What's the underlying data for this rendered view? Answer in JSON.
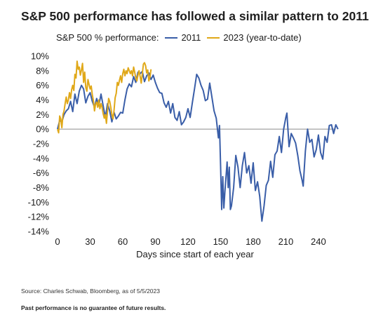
{
  "chart_data": {
    "type": "line",
    "title": "S&P 500 performance has followed a similar pattern to 2011",
    "legend_prefix": "S&P 500 % performance:",
    "xlabel": "Days since start of each year",
    "ylabel": "",
    "xlim": [
      0,
      252
    ],
    "ylim": [
      -14,
      10
    ],
    "xticks": [
      "0",
      "30",
      "60",
      "90",
      "120",
      "150",
      "180",
      "210",
      "240"
    ],
    "yticks": [
      "10%",
      "8%",
      "6%",
      "4%",
      "2%",
      "0%",
      "-2%",
      "-4%",
      "-6%",
      "-8%",
      "-10%",
      "-12%",
      "-14%"
    ],
    "grid": false,
    "legend_position": "top",
    "series": [
      {
        "name": "2011",
        "color": "#3a5ea8",
        "points": [
          [
            0,
            0.0
          ],
          [
            2,
            1.2
          ],
          [
            4,
            1.0
          ],
          [
            6,
            2.0
          ],
          [
            8,
            2.5
          ],
          [
            10,
            2.8
          ],
          [
            12,
            3.8
          ],
          [
            14,
            2.4
          ],
          [
            16,
            4.8
          ],
          [
            18,
            3.5
          ],
          [
            20,
            5.2
          ],
          [
            22,
            6.0
          ],
          [
            24,
            5.5
          ],
          [
            26,
            3.6
          ],
          [
            28,
            4.5
          ],
          [
            30,
            5.0
          ],
          [
            32,
            3.8
          ],
          [
            34,
            3.0
          ],
          [
            36,
            4.2
          ],
          [
            38,
            3.2
          ],
          [
            40,
            4.8
          ],
          [
            42,
            3.2
          ],
          [
            44,
            1.6
          ],
          [
            46,
            3.5
          ],
          [
            48,
            2.5
          ],
          [
            50,
            1.0
          ],
          [
            52,
            2.3
          ],
          [
            54,
            1.4
          ],
          [
            56,
            1.8
          ],
          [
            58,
            2.3
          ],
          [
            60,
            2.2
          ],
          [
            62,
            4.0
          ],
          [
            64,
            5.5
          ],
          [
            66,
            6.2
          ],
          [
            68,
            5.8
          ],
          [
            70,
            7.2
          ],
          [
            72,
            6.4
          ],
          [
            74,
            7.8
          ],
          [
            76,
            7.6
          ],
          [
            78,
            7.9
          ],
          [
            80,
            6.5
          ],
          [
            82,
            7.3
          ],
          [
            84,
            7.7
          ],
          [
            86,
            6.8
          ],
          [
            88,
            7.4
          ],
          [
            90,
            6.4
          ],
          [
            92,
            5.6
          ],
          [
            94,
            5.0
          ],
          [
            96,
            4.9
          ],
          [
            98,
            3.6
          ],
          [
            100,
            3.0
          ],
          [
            102,
            3.8
          ],
          [
            104,
            2.2
          ],
          [
            106,
            3.5
          ],
          [
            108,
            1.6
          ],
          [
            110,
            1.2
          ],
          [
            112,
            2.4
          ],
          [
            114,
            0.6
          ],
          [
            116,
            1.0
          ],
          [
            118,
            1.6
          ],
          [
            120,
            2.8
          ],
          [
            122,
            1.6
          ],
          [
            124,
            3.6
          ],
          [
            126,
            5.5
          ],
          [
            128,
            7.5
          ],
          [
            130,
            7.0
          ],
          [
            132,
            6.0
          ],
          [
            134,
            5.3
          ],
          [
            136,
            3.9
          ],
          [
            138,
            4.1
          ],
          [
            140,
            6.3
          ],
          [
            142,
            4.4
          ],
          [
            144,
            2.5
          ],
          [
            146,
            1.5
          ],
          [
            148,
            -1.2
          ],
          [
            149,
            0.5
          ],
          [
            150,
            -5.0
          ],
          [
            151,
            -11.0
          ],
          [
            152,
            -6.5
          ],
          [
            153,
            -10.8
          ],
          [
            154,
            -8.5
          ],
          [
            156,
            -4.5
          ],
          [
            157,
            -8.0
          ],
          [
            158,
            -5.2
          ],
          [
            159,
            -11.0
          ],
          [
            160,
            -10.5
          ],
          [
            162,
            -8.0
          ],
          [
            164,
            -3.6
          ],
          [
            166,
            -5.2
          ],
          [
            168,
            -8.0
          ],
          [
            170,
            -5.0
          ],
          [
            172,
            -3.2
          ],
          [
            174,
            -6.0
          ],
          [
            176,
            -5.0
          ],
          [
            178,
            -7.4
          ],
          [
            180,
            -4.6
          ],
          [
            182,
            -8.4
          ],
          [
            184,
            -7.2
          ],
          [
            186,
            -9.2
          ],
          [
            188,
            -12.6
          ],
          [
            190,
            -10.5
          ],
          [
            192,
            -7.7
          ],
          [
            194,
            -7.0
          ],
          [
            196,
            -4.4
          ],
          [
            198,
            -6.6
          ],
          [
            200,
            -3.5
          ],
          [
            202,
            -3.0
          ],
          [
            204,
            -1.0
          ],
          [
            206,
            -3.2
          ],
          [
            208,
            0.0
          ],
          [
            210,
            1.6
          ],
          [
            211,
            2.2
          ],
          [
            213,
            -2.4
          ],
          [
            215,
            -0.6
          ],
          [
            217,
            -1.2
          ],
          [
            219,
            -1.9
          ],
          [
            221,
            -3.6
          ],
          [
            223,
            -5.7
          ],
          [
            225,
            -7.0
          ],
          [
            226,
            -7.8
          ],
          [
            228,
            -3.0
          ],
          [
            230,
            0.0
          ],
          [
            232,
            -1.8
          ],
          [
            234,
            -1.4
          ],
          [
            236,
            -3.8
          ],
          [
            238,
            -2.8
          ],
          [
            240,
            -0.8
          ],
          [
            242,
            -3.2
          ],
          [
            244,
            -4.1
          ],
          [
            246,
            -1.0
          ],
          [
            248,
            -1.8
          ],
          [
            250,
            0.5
          ],
          [
            252,
            0.6
          ],
          [
            254,
            -0.6
          ],
          [
            256,
            0.6
          ],
          [
            258,
            0.0
          ]
        ]
      },
      {
        "name": "2023 (year-to-date)",
        "color": "#e0a818",
        "points": [
          [
            0,
            0.0
          ],
          [
            1,
            -0.5
          ],
          [
            2,
            1.8
          ],
          [
            3,
            1.4
          ],
          [
            4,
            0.2
          ],
          [
            5,
            2.0
          ],
          [
            6,
            2.5
          ],
          [
            7,
            3.5
          ],
          [
            8,
            4.4
          ],
          [
            9,
            3.5
          ],
          [
            10,
            4.0
          ],
          [
            11,
            5.0
          ],
          [
            12,
            4.2
          ],
          [
            13,
            5.4
          ],
          [
            14,
            6.0
          ],
          [
            15,
            5.3
          ],
          [
            16,
            7.5
          ],
          [
            17,
            7.0
          ],
          [
            18,
            9.3
          ],
          [
            19,
            8.2
          ],
          [
            20,
            8.5
          ],
          [
            21,
            7.4
          ],
          [
            22,
            8.1
          ],
          [
            23,
            9.0
          ],
          [
            24,
            6.4
          ],
          [
            25,
            7.8
          ],
          [
            26,
            5.7
          ],
          [
            27,
            5.2
          ],
          [
            28,
            6.8
          ],
          [
            29,
            6.1
          ],
          [
            30,
            5.5
          ],
          [
            31,
            5.9
          ],
          [
            32,
            4.7
          ],
          [
            33,
            3.9
          ],
          [
            34,
            2.5
          ],
          [
            35,
            3.4
          ],
          [
            36,
            3.7
          ],
          [
            37,
            3.0
          ],
          [
            38,
            4.0
          ],
          [
            39,
            2.8
          ],
          [
            40,
            3.5
          ],
          [
            41,
            3.0
          ],
          [
            42,
            2.1
          ],
          [
            43,
            1.5
          ],
          [
            44,
            2.0
          ],
          [
            45,
            0.8
          ],
          [
            46,
            2.5
          ],
          [
            47,
            4.2
          ],
          [
            48,
            3.8
          ],
          [
            49,
            3.0
          ],
          [
            50,
            2.0
          ],
          [
            51,
            1.4
          ],
          [
            52,
            2.6
          ],
          [
            53,
            4.3
          ],
          [
            54,
            4.9
          ],
          [
            55,
            6.4
          ],
          [
            56,
            6.0
          ],
          [
            57,
            6.7
          ],
          [
            58,
            7.3
          ],
          [
            59,
            6.4
          ],
          [
            60,
            7.6
          ],
          [
            61,
            8.2
          ],
          [
            62,
            7.3
          ],
          [
            63,
            8.0
          ],
          [
            64,
            7.6
          ],
          [
            65,
            8.4
          ],
          [
            66,
            8.0
          ],
          [
            67,
            7.6
          ],
          [
            68,
            8.0
          ],
          [
            69,
            7.3
          ],
          [
            70,
            8.5
          ],
          [
            71,
            7.8
          ],
          [
            72,
            7.0
          ],
          [
            73,
            6.6
          ],
          [
            74,
            7.4
          ],
          [
            75,
            8.0
          ],
          [
            76,
            7.2
          ],
          [
            77,
            6.3
          ],
          [
            78,
            7.6
          ],
          [
            79,
            8.9
          ],
          [
            80,
            9.1
          ],
          [
            81,
            8.7
          ],
          [
            82,
            7.7
          ],
          [
            83,
            8.1
          ],
          [
            84,
            6.6
          ],
          [
            85,
            7.1
          ],
          [
            86,
            8.2
          ]
        ]
      }
    ]
  },
  "footer": {
    "source": "Source: Charles Schwab, Bloomberg, as of 5/5/2023",
    "disclaimer": "Past performance is no guarantee of future results."
  }
}
